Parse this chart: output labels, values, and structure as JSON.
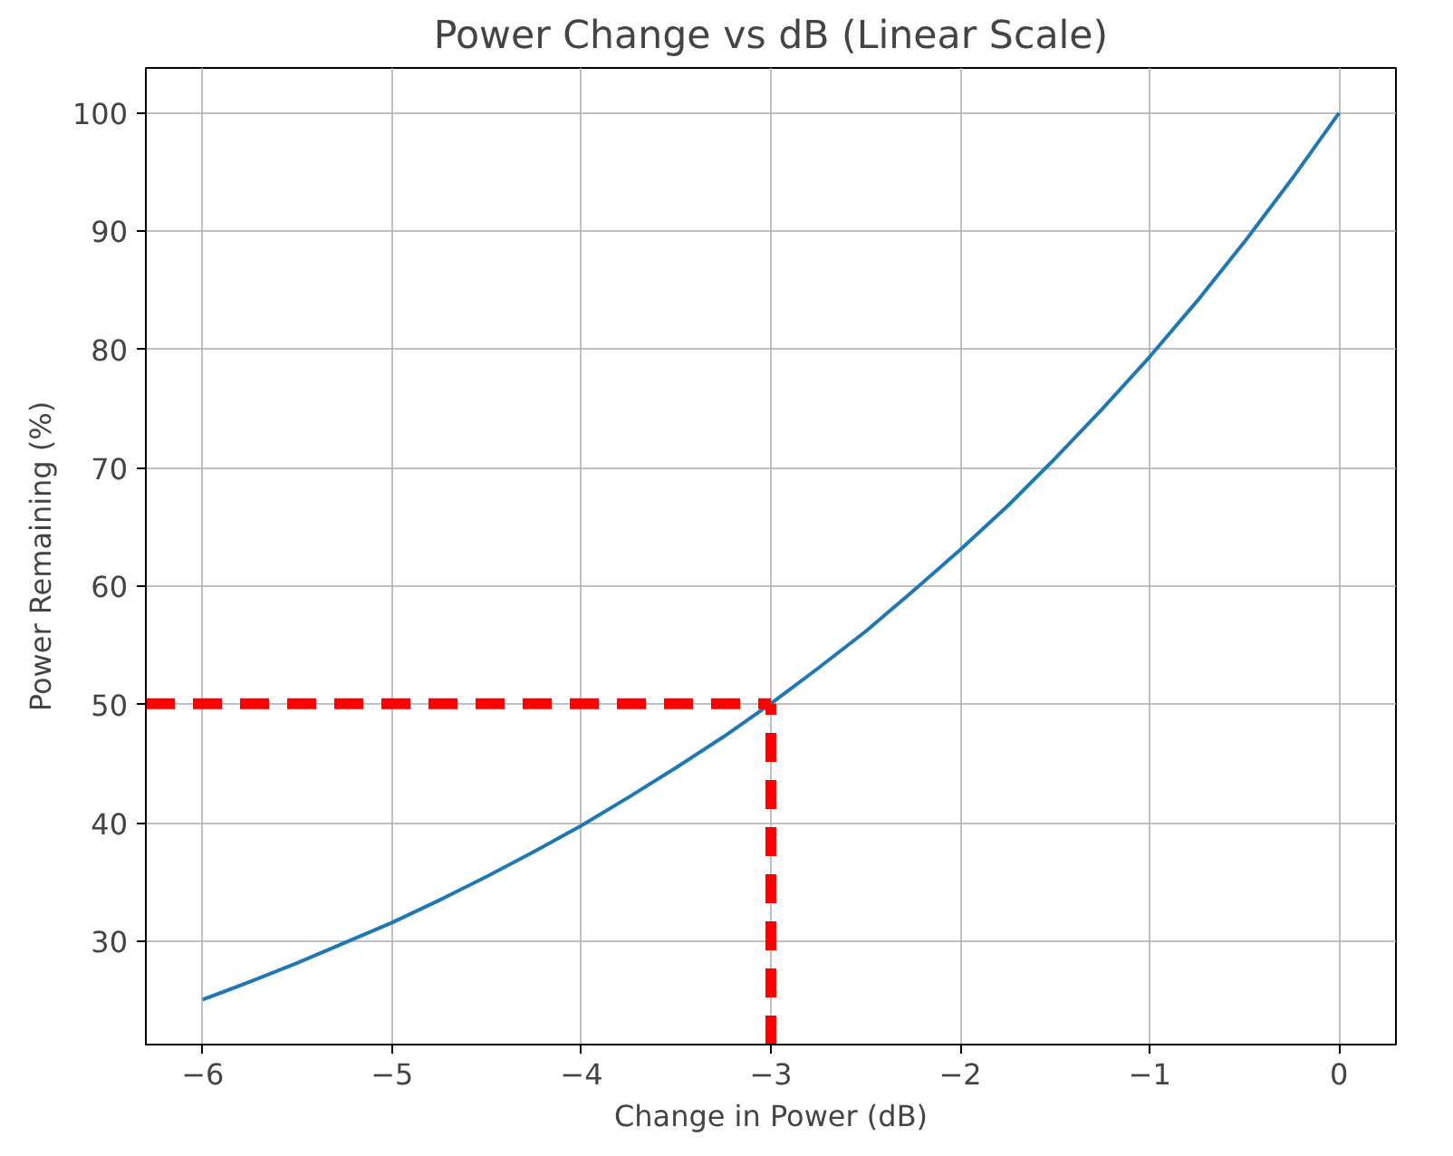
{
  "chart_data": {
    "type": "line",
    "title": "Power Change vs dB (Linear Scale)",
    "xlabel": "Change in Power (dB)",
    "ylabel": "Power Remaining (%)",
    "xlim": [
      -6.3,
      0.3
    ],
    "ylim": [
      21.3,
      103.8
    ],
    "xticks": [
      {
        "value": -6,
        "label": "−6"
      },
      {
        "value": -5,
        "label": "−5"
      },
      {
        "value": -4,
        "label": "−4"
      },
      {
        "value": -3,
        "label": "−3"
      },
      {
        "value": -2,
        "label": "−2"
      },
      {
        "value": -1,
        "label": "−1"
      },
      0
    ],
    "yticks": [
      30,
      40,
      50,
      60,
      70,
      80,
      90,
      100
    ],
    "grid": true,
    "series": [
      {
        "color": "#1f77b4",
        "line_style": "solid",
        "x": [
          -6,
          -5.75,
          -5.5,
          -5.25,
          -5,
          -4.75,
          -4.5,
          -4.25,
          -4,
          -3.75,
          -3.5,
          -3.25,
          -3,
          -2.75,
          -2.5,
          -2.25,
          -2,
          -1.75,
          -1.5,
          -1.25,
          -1,
          -0.75,
          -0.5,
          -0.25,
          0
        ],
        "values": [
          25.1,
          26.6,
          28.2,
          29.9,
          31.6,
          33.5,
          35.5,
          37.6,
          39.8,
          42.2,
          44.7,
          47.3,
          50.1,
          53.1,
          56.2,
          59.6,
          63.1,
          66.8,
          70.8,
          75.0,
          79.4,
          84.1,
          89.1,
          94.4,
          100
        ]
      },
      {
        "color": "#ff0000",
        "line_style": "dashed",
        "x": [
          -6.3,
          -3
        ],
        "values": [
          50.1,
          50.1
        ]
      },
      {
        "color": "#ff0000",
        "line_style": "dashed",
        "x": [
          -3,
          -3
        ],
        "values": [
          21.3,
          50.1
        ]
      }
    ]
  }
}
